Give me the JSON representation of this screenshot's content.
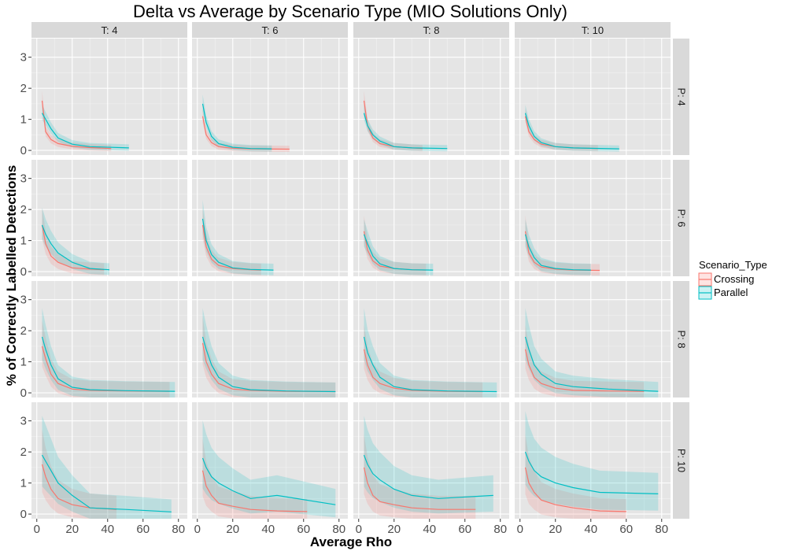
{
  "chart_data": {
    "type": "line",
    "title": "Delta vs Average by Scenario Type (MIO Solutions Only)",
    "xlabel": "Average Rho",
    "ylabel": "% of Correctly Labelled Detections",
    "xlim": [
      -3,
      85
    ],
    "ylim": [
      -0.15,
      3.6
    ],
    "x_ticks": [
      0,
      20,
      40,
      60,
      80
    ],
    "y_ticks": [
      0,
      1,
      2,
      3
    ],
    "x_tick_labels": [
      "0",
      "20",
      "40",
      "60",
      "80"
    ],
    "y_tick_labels": [
      "0",
      "1",
      "2",
      "3"
    ],
    "grid": true,
    "legend": {
      "title": "Scenario_Type",
      "position": "right",
      "entries": [
        "Crossing",
        "Parallel"
      ]
    },
    "colors": {
      "Crossing": "#F8766D",
      "Parallel": "#00BFC4",
      "panel_bg": "#E5E5E5",
      "strip_bg": "#D9D9D9",
      "grid": "#FFFFFF"
    },
    "facet_cols": [
      "T: 4",
      "T: 6",
      "T: 8",
      "T: 10"
    ],
    "facet_rows": [
      "P: 4",
      "P: 6",
      "P: 8",
      "P: 10"
    ],
    "panels": [
      [
        {
          "Crossing": {
            "x": [
              3,
              5,
              8,
              12,
              20,
              30,
              42
            ],
            "y": [
              1.6,
              0.6,
              0.35,
              0.22,
              0.13,
              0.09,
              0.06
            ]
          },
          "Parallel": {
            "x": [
              3,
              5,
              8,
              12,
              20,
              30,
              52
            ],
            "y": [
              1.2,
              1.0,
              0.7,
              0.4,
              0.2,
              0.12,
              0.08
            ]
          }
        },
        {
          "Crossing": {
            "x": [
              3,
              5,
              8,
              12,
              20,
              30,
              52
            ],
            "y": [
              1.1,
              0.5,
              0.25,
              0.12,
              0.07,
              0.05,
              0.04
            ]
          },
          "Parallel": {
            "x": [
              3,
              5,
              8,
              12,
              20,
              30,
              42
            ],
            "y": [
              1.5,
              0.9,
              0.45,
              0.22,
              0.1,
              0.06,
              0.05
            ]
          }
        },
        {
          "Crossing": {
            "x": [
              3,
              5,
              8,
              12,
              20,
              30,
              36
            ],
            "y": [
              1.6,
              0.8,
              0.4,
              0.22,
              0.12,
              0.08,
              0.06
            ]
          },
          "Parallel": {
            "x": [
              3,
              5,
              8,
              12,
              20,
              30,
              50
            ],
            "y": [
              1.2,
              0.8,
              0.5,
              0.3,
              0.12,
              0.08,
              0.06
            ]
          }
        },
        {
          "Crossing": {
            "x": [
              3,
              5,
              8,
              12,
              20,
              30,
              44
            ],
            "y": [
              1.1,
              0.6,
              0.35,
              0.2,
              0.12,
              0.08,
              0.06
            ]
          },
          "Parallel": {
            "x": [
              3,
              5,
              8,
              12,
              20,
              30,
              56
            ],
            "y": [
              1.2,
              0.8,
              0.45,
              0.25,
              0.12,
              0.08,
              0.05
            ]
          }
        }
      ],
      [
        {
          "Crossing": {
            "x": [
              3,
              5,
              8,
              12,
              20,
              30,
              38
            ],
            "y": [
              1.5,
              0.9,
              0.5,
              0.3,
              0.12,
              0.08,
              0.06
            ]
          },
          "Parallel": {
            "x": [
              3,
              5,
              8,
              12,
              20,
              30,
              41
            ],
            "y": [
              1.5,
              1.2,
              0.9,
              0.6,
              0.3,
              0.1,
              0.06
            ]
          }
        },
        {
          "Crossing": {
            "x": [
              3,
              5,
              8,
              12,
              20,
              30,
              36
            ],
            "y": [
              1.5,
              0.8,
              0.4,
              0.2,
              0.1,
              0.06,
              0.05
            ]
          },
          "Parallel": {
            "x": [
              3,
              5,
              8,
              12,
              20,
              30,
              43
            ],
            "y": [
              1.7,
              1.0,
              0.55,
              0.3,
              0.12,
              0.07,
              0.05
            ]
          }
        },
        {
          "Crossing": {
            "x": [
              3,
              5,
              8,
              12,
              20,
              30,
              38
            ],
            "y": [
              1.3,
              0.7,
              0.35,
              0.18,
              0.1,
              0.06,
              0.05
            ]
          },
          "Parallel": {
            "x": [
              3,
              5,
              8,
              12,
              20,
              30,
              42
            ],
            "y": [
              1.2,
              0.9,
              0.5,
              0.25,
              0.1,
              0.06,
              0.05
            ]
          }
        },
        {
          "Crossing": {
            "x": [
              3,
              5,
              8,
              12,
              20,
              30,
              45
            ],
            "y": [
              1.3,
              0.6,
              0.3,
              0.15,
              0.08,
              0.05,
              0.04
            ]
          },
          "Parallel": {
            "x": [
              3,
              5,
              8,
              12,
              20,
              30,
              40
            ],
            "y": [
              1.2,
              0.8,
              0.45,
              0.2,
              0.1,
              0.06,
              0.05
            ]
          }
        }
      ],
      [
        {
          "Crossing": {
            "x": [
              3,
              5,
              8,
              12,
              20,
              30,
              50,
              75
            ],
            "y": [
              1.5,
              1.1,
              0.6,
              0.3,
              0.12,
              0.08,
              0.06,
              0.05
            ]
          },
          "Parallel": {
            "x": [
              3,
              5,
              8,
              12,
              20,
              30,
              50,
              78
            ],
            "y": [
              1.8,
              1.4,
              0.9,
              0.45,
              0.18,
              0.1,
              0.07,
              0.05
            ]
          }
        },
        {
          "Crossing": {
            "x": [
              3,
              5,
              8,
              12,
              20,
              30,
              50,
              78
            ],
            "y": [
              1.6,
              1.0,
              0.6,
              0.3,
              0.12,
              0.08,
              0.05,
              0.04
            ]
          },
          "Parallel": {
            "x": [
              3,
              5,
              8,
              12,
              20,
              30,
              50,
              78
            ],
            "y": [
              1.8,
              1.4,
              0.9,
              0.5,
              0.2,
              0.1,
              0.06,
              0.04
            ]
          }
        },
        {
          "Crossing": {
            "x": [
              3,
              5,
              8,
              12,
              20,
              30,
              50,
              70
            ],
            "y": [
              1.4,
              0.9,
              0.5,
              0.3,
              0.15,
              0.08,
              0.05,
              0.04
            ]
          },
          "Parallel": {
            "x": [
              3,
              5,
              8,
              12,
              20,
              30,
              50,
              78
            ],
            "y": [
              1.8,
              1.3,
              0.9,
              0.5,
              0.2,
              0.1,
              0.06,
              0.04
            ]
          }
        },
        {
          "Crossing": {
            "x": [
              3,
              5,
              8,
              12,
              20,
              30,
              50,
              70
            ],
            "y": [
              1.4,
              0.9,
              0.5,
              0.3,
              0.15,
              0.08,
              0.06,
              0.05
            ]
          },
          "Parallel": {
            "x": [
              3,
              5,
              8,
              12,
              20,
              30,
              50,
              78
            ],
            "y": [
              1.8,
              1.4,
              0.9,
              0.6,
              0.3,
              0.2,
              0.12,
              0.05
            ]
          }
        }
      ],
      [
        {
          "Crossing": {
            "x": [
              3,
              5,
              8,
              12,
              20,
              30,
              45
            ],
            "y": [
              1.6,
              1.2,
              0.8,
              0.5,
              0.3,
              0.2,
              0.15
            ]
          },
          "Parallel": {
            "x": [
              3,
              5,
              8,
              12,
              20,
              30,
              50,
              76
            ],
            "y": [
              1.9,
              1.7,
              1.4,
              1.0,
              0.6,
              0.2,
              0.15,
              0.07
            ]
          }
        },
        {
          "Crossing": {
            "x": [
              3,
              5,
              8,
              12,
              20,
              30,
              45,
              62
            ],
            "y": [
              1.4,
              0.9,
              0.6,
              0.35,
              0.25,
              0.15,
              0.1,
              0.08
            ]
          },
          "Parallel": {
            "x": [
              3,
              5,
              8,
              12,
              20,
              30,
              45,
              78
            ],
            "y": [
              1.8,
              1.5,
              1.2,
              1.0,
              0.75,
              0.5,
              0.6,
              0.3
            ]
          }
        },
        {
          "Crossing": {
            "x": [
              3,
              5,
              8,
              12,
              20,
              30,
              45,
              66
            ],
            "y": [
              1.5,
              1.0,
              0.6,
              0.4,
              0.3,
              0.2,
              0.15,
              0.15
            ]
          },
          "Parallel": {
            "x": [
              3,
              5,
              8,
              12,
              20,
              30,
              45,
              76
            ],
            "y": [
              1.9,
              1.6,
              1.3,
              1.1,
              0.8,
              0.6,
              0.5,
              0.6
            ]
          }
        },
        {
          "Crossing": {
            "x": [
              3,
              5,
              8,
              12,
              20,
              30,
              45,
              60
            ],
            "y": [
              1.5,
              1.0,
              0.7,
              0.45,
              0.3,
              0.2,
              0.1,
              0.08
            ]
          },
          "Parallel": {
            "x": [
              3,
              5,
              8,
              12,
              20,
              30,
              45,
              78
            ],
            "y": [
              2.0,
              1.7,
              1.4,
              1.2,
              1.0,
              0.85,
              0.7,
              0.65
            ]
          }
        }
      ]
    ]
  }
}
